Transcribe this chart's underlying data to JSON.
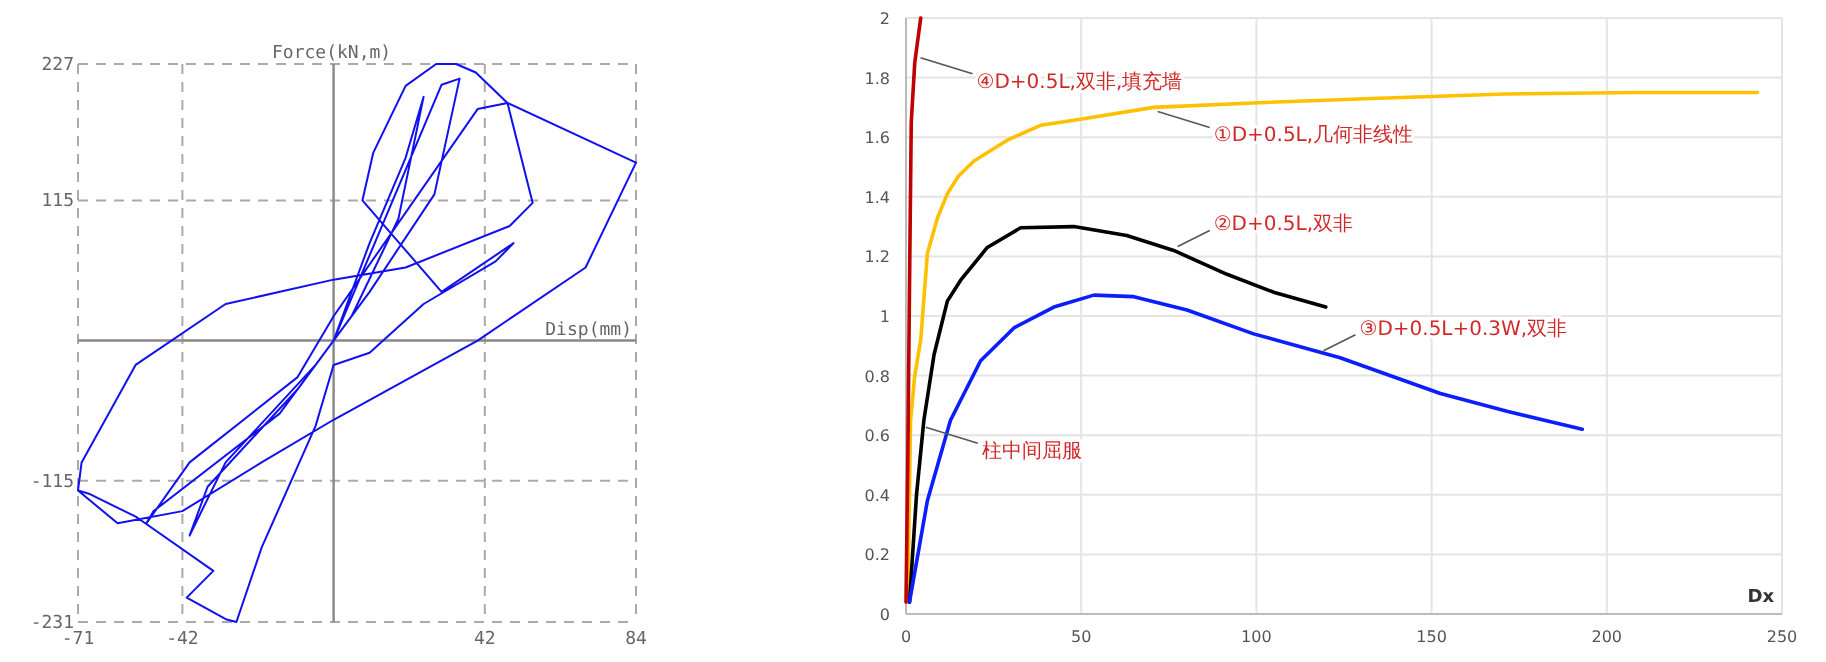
{
  "chart_data": [
    {
      "type": "line",
      "xlabel": "Disp(mm)",
      "ylabel": "Force(kN,m)",
      "xlim": [
        -71,
        84
      ],
      "ylim": [
        -231,
        227
      ],
      "xticks": [
        -71,
        -42,
        42,
        84
      ],
      "yticks": [
        -231,
        -115,
        115,
        227
      ],
      "grid": true,
      "series": [
        {
          "color": "#1010f0",
          "x": [
            0,
            10,
            20,
            25,
            18,
            5,
            -10,
            -35,
            -40,
            -30,
            -5,
            0,
            30,
            35,
            28,
            10,
            -15,
            -50,
            -52,
            -40,
            -10,
            0,
            40,
            48.3,
            55.3,
            48.9,
            20,
            0,
            -30,
            -55,
            -70,
            -71,
            -67.7,
            -54.7,
            -33.4,
            -40.8,
            -29.7,
            -27,
            -20,
            -5,
            0,
            10,
            25,
            45,
            50,
            30,
            8,
            11,
            20,
            28.5,
            34,
            39.5,
            48.3,
            84,
            70,
            40,
            0,
            -20,
            -42,
            -60,
            -71
          ],
          "values": [
            0,
            80,
            150,
            200,
            100,
            20,
            -40,
            -120,
            -160,
            -100,
            -20,
            0,
            210,
            215,
            120,
            40,
            -60,
            -140,
            -150,
            -100,
            -30,
            20,
            190,
            195,
            113,
            94,
            60,
            50,
            30,
            -20,
            -100,
            -123,
            -126,
            -145,
            -189,
            -211,
            -229,
            -231,
            -170,
            -70,
            -20,
            -10,
            30,
            65,
            80,
            40,
            115,
            154,
            209,
            227,
            227,
            220,
            195,
            146,
            60,
            0,
            -65,
            -100,
            -140,
            -150,
            -123
          ]
        }
      ]
    },
    {
      "type": "line",
      "xlabel": "Dx",
      "xlim": [
        0,
        250
      ],
      "ylim": [
        0,
        2
      ],
      "xticks": [
        0,
        50,
        100,
        150,
        200,
        250
      ],
      "yticks": [
        0,
        0.2,
        0.4,
        0.6,
        0.8,
        1,
        1.2,
        1.4,
        1.6,
        1.8,
        2
      ],
      "grid": true,
      "series": [
        {
          "color": "#ffc000",
          "x": [
            0.5,
            1.3,
            2.5,
            4.2,
            6.1,
            9,
            11.8,
            15,
            19.4,
            28.9,
            38.4,
            49.8,
            70.7,
            99,
            133,
            171,
            209,
            243
          ],
          "values": [
            0.04,
            0.65,
            0.8,
            0.92,
            1.21,
            1.33,
            1.41,
            1.47,
            1.52,
            1.59,
            1.64,
            1.66,
            1.7,
            1.715,
            1.73,
            1.745,
            1.75,
            1.75
          ]
        },
        {
          "color": "#000000",
          "x": [
            1,
            3,
            5.1,
            8,
            11.8,
            15.6,
            23.2,
            32.7,
            47.9,
            63,
            76.4,
            91.6,
            104.9,
            119.8
          ],
          "values": [
            0.04,
            0.4,
            0.65,
            0.87,
            1.05,
            1.12,
            1.23,
            1.296,
            1.3,
            1.27,
            1.22,
            1.14,
            1.08,
            1.03
          ]
        },
        {
          "color": "#0a1eff",
          "x": [
            1,
            6.1,
            12.7,
            21.3,
            30.8,
            42.2,
            53.6,
            65,
            80.2,
            99.2,
            123.9,
            152.5,
            171.5,
            193
          ],
          "values": [
            0.04,
            0.38,
            0.65,
            0.85,
            0.96,
            1.03,
            1.07,
            1.065,
            1.02,
            0.94,
            0.86,
            0.74,
            0.68,
            0.62
          ]
        },
        {
          "color": "#c00000",
          "x": [
            0,
            0.5,
            1,
            1.5,
            2.5,
            4.2
          ],
          "values": [
            0.04,
            0.5,
            1.1,
            1.65,
            1.85,
            2
          ]
        }
      ],
      "annotations": [
        {
          "text": "④D+0.5L,双非,填充墙",
          "x": 3,
          "y": 1.88
        },
        {
          "text": "①D+0.5L,几何非线性",
          "x": 70.7,
          "y": 1.7
        },
        {
          "text": "②D+0.5L,双非",
          "x": 76.4,
          "y": 1.22
        },
        {
          "text": "③D+0.5L+0.3W,双非",
          "x": 118,
          "y": 0.87
        },
        {
          "text": "柱中间屈服",
          "x": 4.5,
          "y": 0.64
        }
      ]
    }
  ]
}
